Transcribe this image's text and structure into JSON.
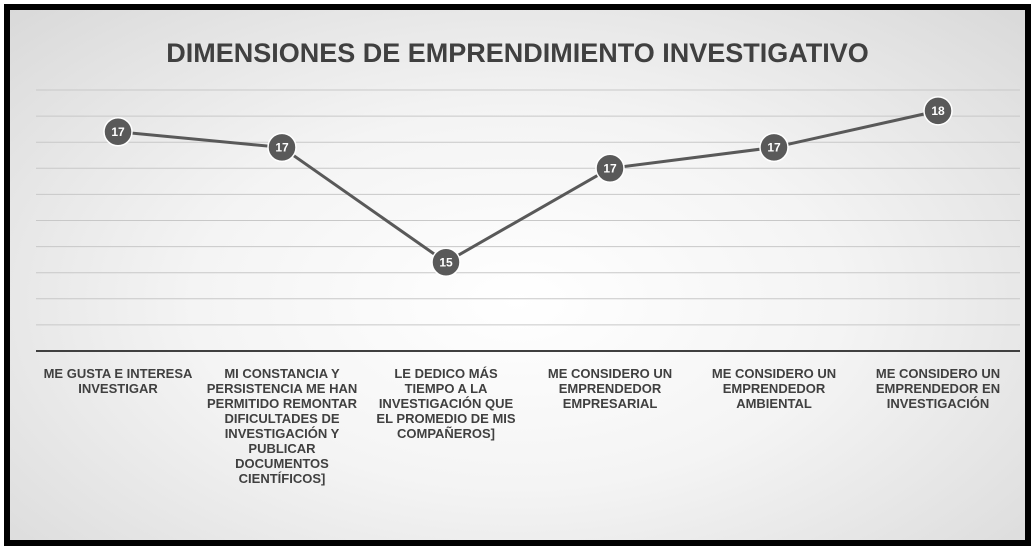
{
  "chart_data": {
    "type": "line",
    "title": "DIMENSIONES DE EMPRENDIMIENTO INVESTIGATIVO",
    "categories": [
      "ME GUSTA E INTERESA INVESTIGAR",
      "MI CONSTANCIA Y PERSISTENCIA ME HAN PERMITIDO REMONTAR DIFICULTADES DE INVESTIGACIÓN Y PUBLICAR DOCUMENTOS CIENTÍFICOS]",
      "LE DEDICO MÁS TIEMPO A LA INVESTIGACIÓN QUE EL PROMEDIO DE MIS COMPAÑEROS]",
      "ME CONSIDERO UN EMPRENDEDOR EMPRESARIAL",
      "ME CONSIDERO UN EMPRENDEDOR AMBIENTAL",
      "ME CONSIDERO UN EMPRENDEDOR EN INVESTIGACIÓN"
    ],
    "values": [
      17.2,
      16.9,
      14.7,
      16.5,
      16.9,
      17.6
    ],
    "value_labels": [
      "17",
      "17",
      "15",
      "17",
      "17",
      "18"
    ],
    "color": "#595959",
    "ylim": [
      13,
      18
    ],
    "yticks": [
      13.5,
      14,
      14.5,
      15,
      15.5,
      16,
      16.5,
      17,
      17.5,
      18
    ],
    "grid": true
  }
}
